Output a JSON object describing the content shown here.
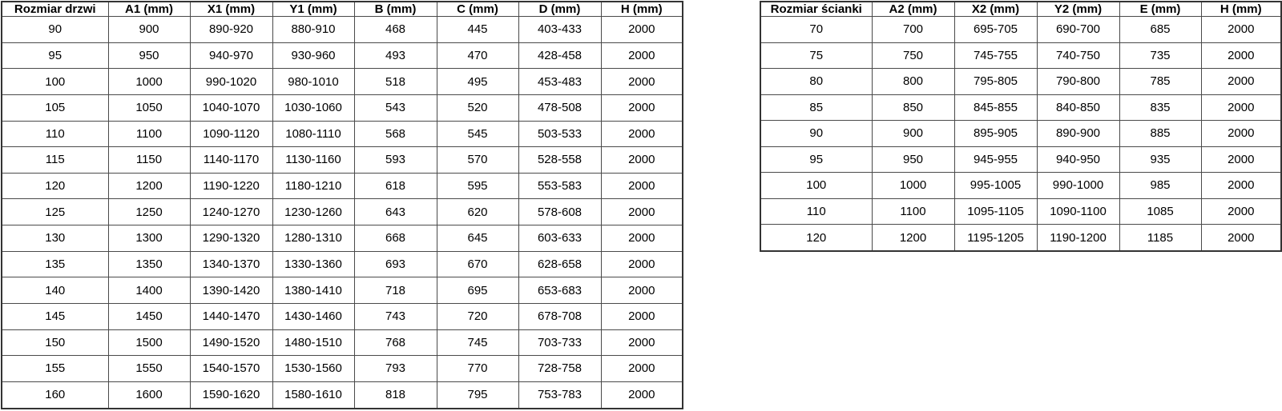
{
  "colors": {
    "background": "#ffffff",
    "border": "#4a4a4a",
    "outer_border": "#333333",
    "text": "#000000"
  },
  "door_table": {
    "headers": [
      "Rozmiar drzwi",
      "A1 (mm)",
      "X1 (mm)",
      "Y1 (mm)",
      "B (mm)",
      "C (mm)",
      "D (mm)",
      "H (mm)"
    ],
    "rows": [
      [
        "90",
        "900",
        "890-920",
        "880-910",
        "468",
        "445",
        "403-433",
        "2000"
      ],
      [
        "95",
        "950",
        "940-970",
        "930-960",
        "493",
        "470",
        "428-458",
        "2000"
      ],
      [
        "100",
        "1000",
        "990-1020",
        "980-1010",
        "518",
        "495",
        "453-483",
        "2000"
      ],
      [
        "105",
        "1050",
        "1040-1070",
        "1030-1060",
        "543",
        "520",
        "478-508",
        "2000"
      ],
      [
        "110",
        "1100",
        "1090-1120",
        "1080-1110",
        "568",
        "545",
        "503-533",
        "2000"
      ],
      [
        "115",
        "1150",
        "1140-1170",
        "1130-1160",
        "593",
        "570",
        "528-558",
        "2000"
      ],
      [
        "120",
        "1200",
        "1190-1220",
        "1180-1210",
        "618",
        "595",
        "553-583",
        "2000"
      ],
      [
        "125",
        "1250",
        "1240-1270",
        "1230-1260",
        "643",
        "620",
        "578-608",
        "2000"
      ],
      [
        "130",
        "1300",
        "1290-1320",
        "1280-1310",
        "668",
        "645",
        "603-633",
        "2000"
      ],
      [
        "135",
        "1350",
        "1340-1370",
        "1330-1360",
        "693",
        "670",
        "628-658",
        "2000"
      ],
      [
        "140",
        "1400",
        "1390-1420",
        "1380-1410",
        "718",
        "695",
        "653-683",
        "2000"
      ],
      [
        "145",
        "1450",
        "1440-1470",
        "1430-1460",
        "743",
        "720",
        "678-708",
        "2000"
      ],
      [
        "150",
        "1500",
        "1490-1520",
        "1480-1510",
        "768",
        "745",
        "703-733",
        "2000"
      ],
      [
        "155",
        "1550",
        "1540-1570",
        "1530-1560",
        "793",
        "770",
        "728-758",
        "2000"
      ],
      [
        "160",
        "1600",
        "1590-1620",
        "1580-1610",
        "818",
        "795",
        "753-783",
        "2000"
      ]
    ]
  },
  "wall_table": {
    "headers": [
      "Rozmiar ścianki",
      "A2 (mm)",
      "X2 (mm)",
      "Y2 (mm)",
      "E (mm)",
      "H (mm)"
    ],
    "rows": [
      [
        "70",
        "700",
        "695-705",
        "690-700",
        "685",
        "2000"
      ],
      [
        "75",
        "750",
        "745-755",
        "740-750",
        "735",
        "2000"
      ],
      [
        "80",
        "800",
        "795-805",
        "790-800",
        "785",
        "2000"
      ],
      [
        "85",
        "850",
        "845-855",
        "840-850",
        "835",
        "2000"
      ],
      [
        "90",
        "900",
        "895-905",
        "890-900",
        "885",
        "2000"
      ],
      [
        "95",
        "950",
        "945-955",
        "940-950",
        "935",
        "2000"
      ],
      [
        "100",
        "1000",
        "995-1005",
        "990-1000",
        "985",
        "2000"
      ],
      [
        "110",
        "1100",
        "1095-1105",
        "1090-1100",
        "1085",
        "2000"
      ],
      [
        "120",
        "1200",
        "1195-1205",
        "1190-1200",
        "1185",
        "2000"
      ]
    ]
  }
}
